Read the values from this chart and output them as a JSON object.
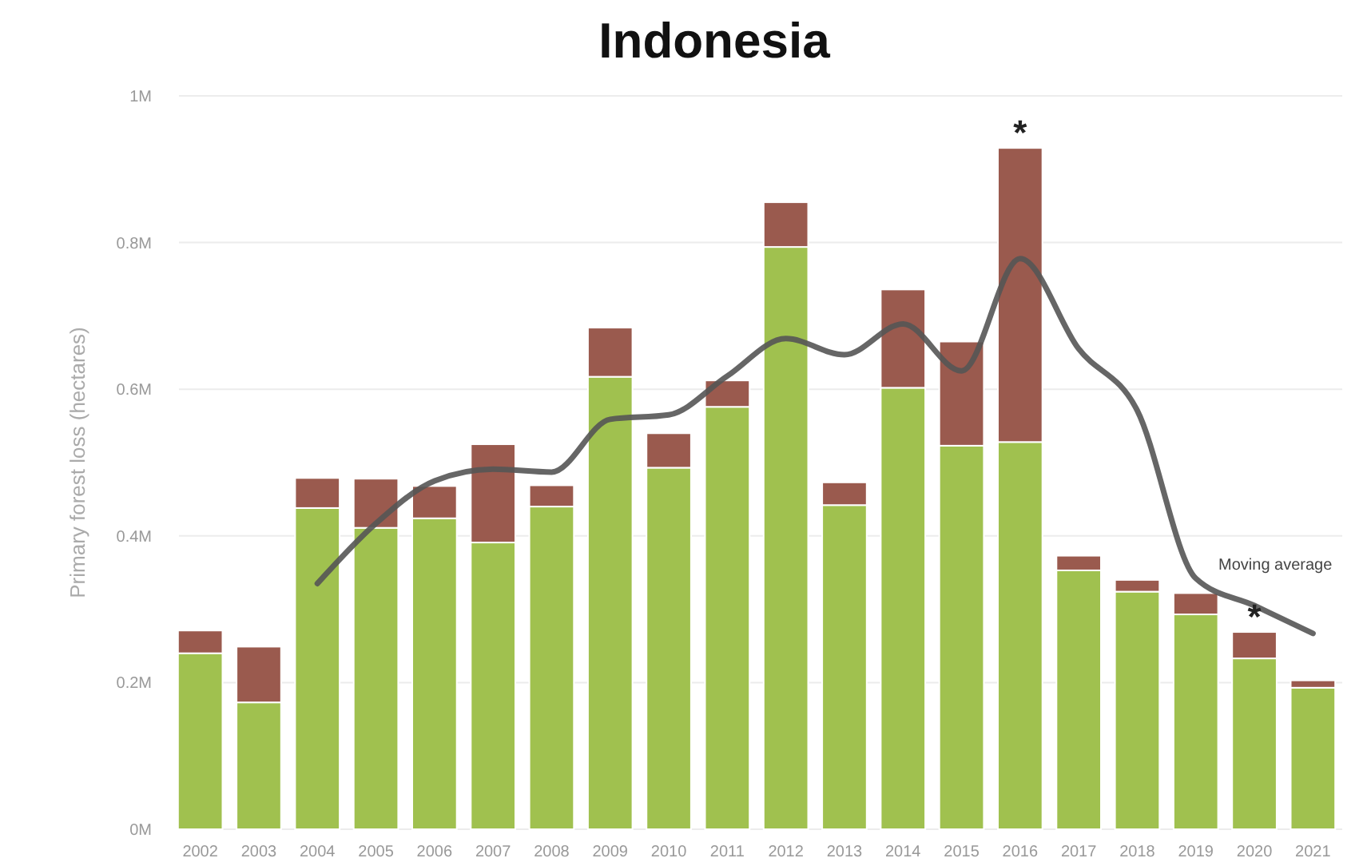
{
  "chart_data": {
    "type": "bar",
    "title": "Indonesia",
    "ylabel": "Primary forest loss (hectares)",
    "categories": [
      "2002",
      "2003",
      "2004",
      "2005",
      "2006",
      "2007",
      "2008",
      "2009",
      "2010",
      "2011",
      "2012",
      "2013",
      "2014",
      "2015",
      "2016",
      "2017",
      "2018",
      "2019",
      "2020",
      "2021"
    ],
    "stacked": true,
    "series": [
      {
        "color": "#a0c14f",
        "values": [
          240000,
          173000,
          438000,
          411000,
          424000,
          391000,
          440000,
          617000,
          493000,
          576000,
          794000,
          442000,
          602000,
          523000,
          528000,
          353000,
          324000,
          293000,
          233000,
          193000
        ]
      },
      {
        "color": "#9a5a4e",
        "values": [
          31000,
          76000,
          41000,
          67000,
          44000,
          134000,
          29000,
          67000,
          47000,
          36000,
          61000,
          31000,
          134000,
          142000,
          401000,
          20000,
          16000,
          29000,
          36000,
          10000
        ]
      },
      {
        "type": "line",
        "name": "Moving average",
        "color": "#555555",
        "values": [
          null,
          null,
          335000,
          417000,
          475000,
          491000,
          487000,
          559000,
          565000,
          618000,
          669000,
          647000,
          689000,
          625000,
          778000,
          655000,
          571000,
          342000,
          305000,
          267000
        ]
      }
    ],
    "ylim": [
      0,
      1000000
    ],
    "yticks": [
      {
        "value": 0,
        "label": "0M"
      },
      {
        "value": 200000,
        "label": "0.2M"
      },
      {
        "value": 400000,
        "label": "0.4M"
      },
      {
        "value": 600000,
        "label": "0.6M"
      },
      {
        "value": 800000,
        "label": "0.8M"
      },
      {
        "value": 1000000,
        "label": "1M"
      }
    ],
    "grid": "y",
    "annotations": [
      {
        "text": "*",
        "x": "2016",
        "y": 929000
      },
      {
        "text": "*",
        "x": "2020",
        "y": 269000
      }
    ]
  }
}
